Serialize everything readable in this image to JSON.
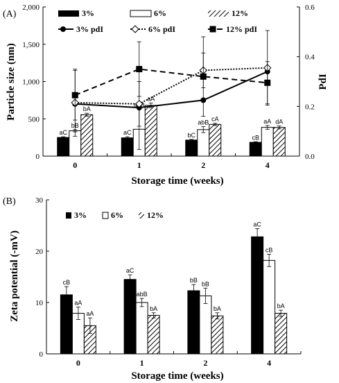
{
  "chart_data": [
    {
      "panel": "(A)",
      "type": "bar",
      "categories": [
        "0",
        "1",
        "2",
        "4"
      ],
      "xlabel": "Storage  time (weeks)",
      "ylabel": "Particle size (nm)",
      "y2label": "PdI",
      "ylim": [
        0,
        2000
      ],
      "yticks": [
        "0",
        "500",
        "1,000",
        "1,500",
        "2,000"
      ],
      "y2lim": [
        0,
        0.6
      ],
      "y2ticks": [
        "0.0",
        "0.2",
        "0.4",
        "0.6"
      ],
      "series": [
        {
          "name": "3%",
          "fill": "#000000",
          "values": [
            250,
            245,
            215,
            185
          ],
          "errors": [
            10,
            15,
            10,
            8
          ],
          "labels": [
            "aC",
            "aC",
            "bC",
            "cB"
          ]
        },
        {
          "name": "6%",
          "fill": "#ffffff",
          "values": [
            340,
            360,
            355,
            385
          ],
          "errors": [
            15,
            270,
            40,
            25
          ],
          "labels": [
            "bB",
            "abB",
            "abB",
            "aA"
          ]
        },
        {
          "name": "12%",
          "fill": "hatch",
          "values": [
            555,
            680,
            425,
            385
          ],
          "errors": [
            20,
            30,
            15,
            20
          ],
          "labels": [
            "bA",
            "aA",
            "cA",
            "dA"
          ]
        }
      ],
      "lines": [
        {
          "name": "3% pdI",
          "marker": "circle",
          "dash": "solid",
          "values": [
            0.21,
            0.195,
            0.225,
            0.34
          ],
          "errors": [
            0,
            0,
            0,
            0
          ]
        },
        {
          "name": "6% pdI",
          "marker": "diamond",
          "dash": "dotted",
          "values": [
            0.215,
            0.21,
            0.345,
            0.355
          ],
          "errors": [
            0.135,
            0.09,
            0.07,
            0.15
          ]
        },
        {
          "name": "12% pdI",
          "marker": "square",
          "dash": "dashed",
          "values": [
            0.245,
            0.35,
            0.32,
            0.295
          ],
          "errors": [
            0.1,
            0.11,
            0.16,
            0.085
          ]
        }
      ],
      "legend": {
        "bars": [
          "3%",
          "6%",
          "12%"
        ],
        "lines": [
          "3% pdI",
          "6% pdI",
          "12% pdI"
        ]
      }
    },
    {
      "panel": "(B)",
      "type": "bar",
      "categories": [
        "0",
        "1",
        "2",
        "4"
      ],
      "xlabel": "Storage  time (weeks)",
      "ylabel": "Zeta potential (-mV)",
      "ylim": [
        0,
        30
      ],
      "yticks": [
        "0",
        "10",
        "20",
        "30"
      ],
      "series": [
        {
          "name": "3%",
          "fill": "#000000",
          "values": [
            11.5,
            14.5,
            12.3,
            22.8
          ],
          "errors": [
            1.6,
            0.9,
            1.2,
            1.6
          ],
          "labels": [
            "cB",
            "aC",
            "bB",
            "aC"
          ]
        },
        {
          "name": "6%",
          "fill": "#ffffff",
          "values": [
            7.9,
            10.0,
            11.3,
            18.2
          ],
          "errors": [
            1.2,
            0.8,
            1.5,
            1.2
          ],
          "labels": [
            "aA",
            "abB",
            "bB",
            "cB"
          ]
        },
        {
          "name": "12%",
          "fill": "hatch",
          "values": [
            5.5,
            7.5,
            7.4,
            7.9
          ],
          "errors": [
            1.5,
            0.5,
            0.6,
            0.6
          ],
          "labels": [
            "aA",
            "bA",
            "bA",
            "bA"
          ]
        }
      ],
      "legend": {
        "bars": [
          "3%",
          "6%",
          "12%"
        ]
      }
    }
  ]
}
